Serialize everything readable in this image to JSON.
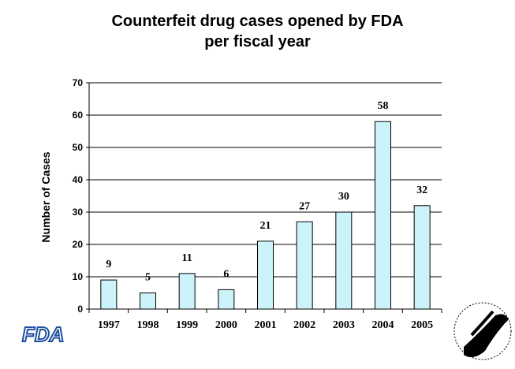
{
  "chart_data": {
    "type": "bar",
    "title_line1": "Counterfeit drug cases opened by FDA",
    "title_line2": "per fiscal year",
    "xlabel": "",
    "ylabel": "Number of Cases",
    "categories": [
      "1997",
      "1998",
      "1999",
      "2000",
      "2001",
      "2002",
      "2003",
      "2004",
      "2005"
    ],
    "values": [
      9,
      5,
      11,
      6,
      21,
      27,
      30,
      58,
      32
    ],
    "ylim": [
      0,
      70
    ],
    "yticks": [
      0,
      10,
      20,
      30,
      40,
      50,
      60,
      70
    ],
    "grid": true,
    "bar_color": "#ccf2fa"
  },
  "logos": {
    "left": "FDA",
    "right": "DEPARTMENT OF HEALTH & HUMAN SERVICES USA"
  }
}
